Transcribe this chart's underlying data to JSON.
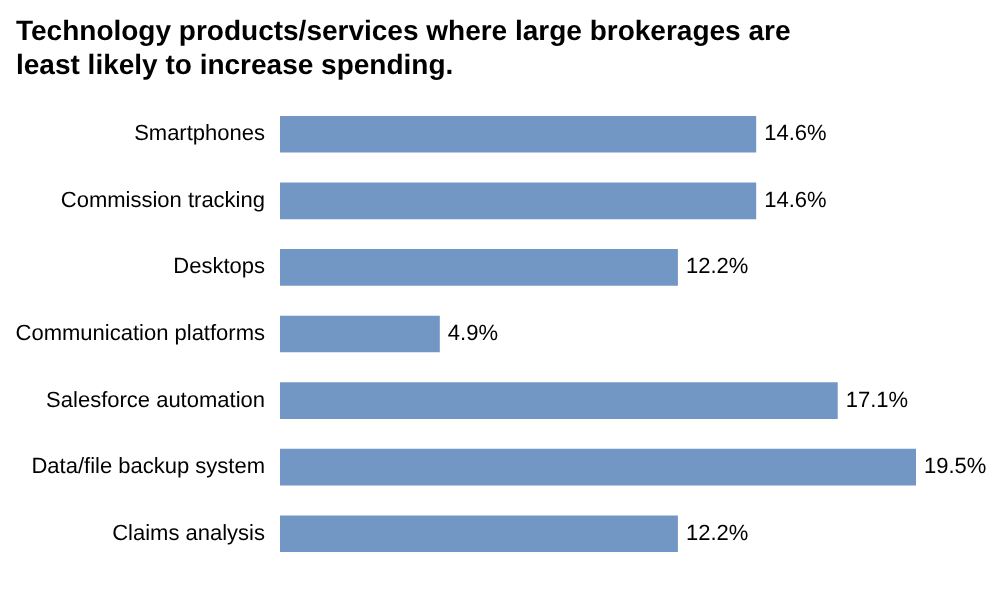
{
  "chart_data": {
    "type": "bar",
    "orientation": "horizontal",
    "title": "Technology products/services where large brokerages are least likely to increase spending.",
    "categories": [
      "Smartphones",
      "Commission tracking",
      "Desktops",
      "Communication platforms",
      "Salesforce automation",
      "Data/file backup system",
      "Claims analysis"
    ],
    "values": [
      14.6,
      14.6,
      12.2,
      4.9,
      17.1,
      19.5,
      12.2
    ],
    "value_labels": [
      "14.6%",
      "14.6%",
      "12.2%",
      "4.9%",
      "17.1%",
      "19.5%",
      "12.2%"
    ],
    "color": "#7297c5"
  }
}
